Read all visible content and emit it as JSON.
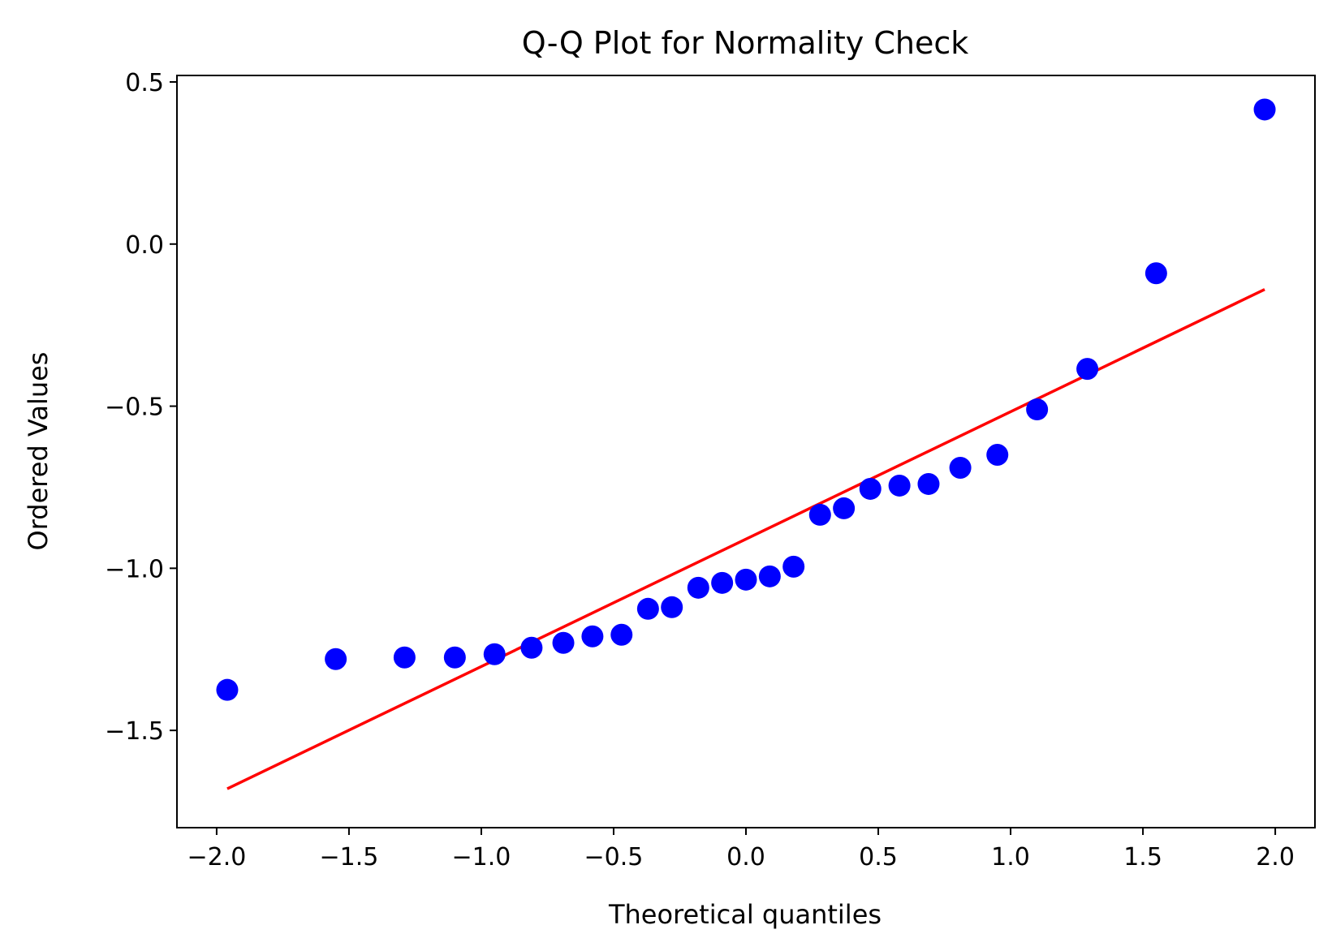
{
  "chart_data": {
    "type": "scatter",
    "title": "Q-Q Plot for Normality Check",
    "xlabel": "Theoretical quantiles",
    "ylabel": "Ordered Values",
    "xlim": [
      -2.15,
      2.15
    ],
    "ylim": [
      -1.8,
      0.52
    ],
    "xticks": [
      -2.0,
      -1.5,
      -1.0,
      -0.5,
      0.0,
      0.5,
      1.0,
      1.5,
      2.0
    ],
    "xtick_labels": [
      "−2.0",
      "−1.5",
      "−1.0",
      "−0.5",
      "0.0",
      "0.5",
      "1.0",
      "1.5",
      "2.0"
    ],
    "yticks": [
      0.5,
      0.0,
      -0.5,
      -1.0,
      -1.5
    ],
    "ytick_labels": [
      "0.5",
      "0.0",
      "−0.5",
      "−1.0",
      "−1.5"
    ],
    "grid": false,
    "points": {
      "color": "#0000ff",
      "x": [
        -1.96,
        -1.55,
        -1.29,
        -1.1,
        -0.95,
        -0.81,
        -0.69,
        -0.58,
        -0.47,
        -0.37,
        -0.28,
        -0.18,
        -0.09,
        0.0,
        0.09,
        0.18,
        0.28,
        0.37,
        0.47,
        0.58,
        0.69,
        0.81,
        0.95,
        1.1,
        1.29,
        1.55,
        1.96
      ],
      "y": [
        -1.375,
        -1.28,
        -1.275,
        -1.275,
        -1.265,
        -1.245,
        -1.23,
        -1.21,
        -1.205,
        -1.125,
        -1.12,
        -1.06,
        -1.045,
        -1.035,
        -1.025,
        -0.995,
        -0.835,
        -0.815,
        -0.755,
        -0.745,
        -0.74,
        -0.69,
        -0.65,
        -0.51,
        -0.385,
        -0.09,
        0.415
      ]
    },
    "fit_line": {
      "color": "#ff0000",
      "x": [
        -1.96,
        1.96
      ],
      "y": [
        -1.68,
        -0.14
      ]
    }
  }
}
